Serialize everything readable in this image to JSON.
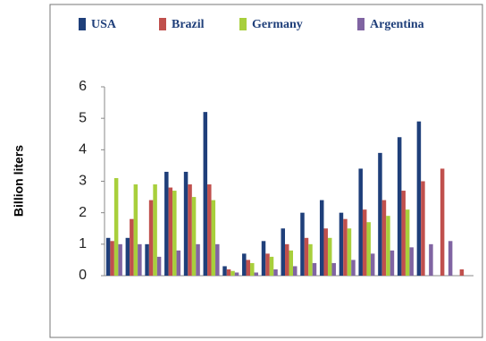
{
  "chart_data": {
    "type": "bar",
    "y_label": "Billion liters",
    "categories": [
      null,
      null,
      null,
      null,
      null,
      null,
      null,
      null,
      null,
      null,
      null,
      null,
      null,
      null,
      null,
      null,
      null,
      null,
      null
    ],
    "series": [
      {
        "name": "USA",
        "color": "#1f3f7a",
        "values": [
          1.2,
          1.2,
          1.0,
          3.3,
          3.3,
          5.2,
          0.3,
          0.7,
          1.1,
          1.5,
          2.0,
          2.4,
          2.0,
          3.4,
          3.9,
          4.4,
          4.9,
          null,
          null
        ]
      },
      {
        "name": "Brazil",
        "color": "#c0504d",
        "values": [
          1.1,
          1.8,
          2.4,
          2.8,
          2.9,
          2.9,
          0.2,
          0.5,
          0.7,
          1.0,
          1.2,
          1.5,
          1.8,
          2.1,
          2.4,
          2.7,
          3.0,
          3.4,
          0.2
        ]
      },
      {
        "name": "Germany",
        "color": "#a8cf3c",
        "values": [
          3.1,
          2.9,
          2.9,
          2.7,
          2.5,
          2.4,
          0.15,
          0.4,
          0.6,
          0.8,
          1.0,
          1.2,
          1.5,
          1.7,
          1.9,
          2.1,
          null,
          null,
          null
        ]
      },
      {
        "name": "Argentina",
        "color": "#8064a2",
        "values": [
          1.0,
          1.0,
          0.6,
          0.8,
          1.0,
          1.0,
          0.1,
          0.1,
          0.2,
          0.3,
          0.4,
          0.4,
          0.5,
          0.7,
          0.8,
          0.9,
          1.0,
          1.1,
          null
        ]
      }
    ],
    "ylim": [
      0,
      6
    ],
    "yticks": [
      0,
      1,
      2,
      3,
      4,
      5,
      6
    ],
    "grid": false,
    "legend": "top"
  }
}
